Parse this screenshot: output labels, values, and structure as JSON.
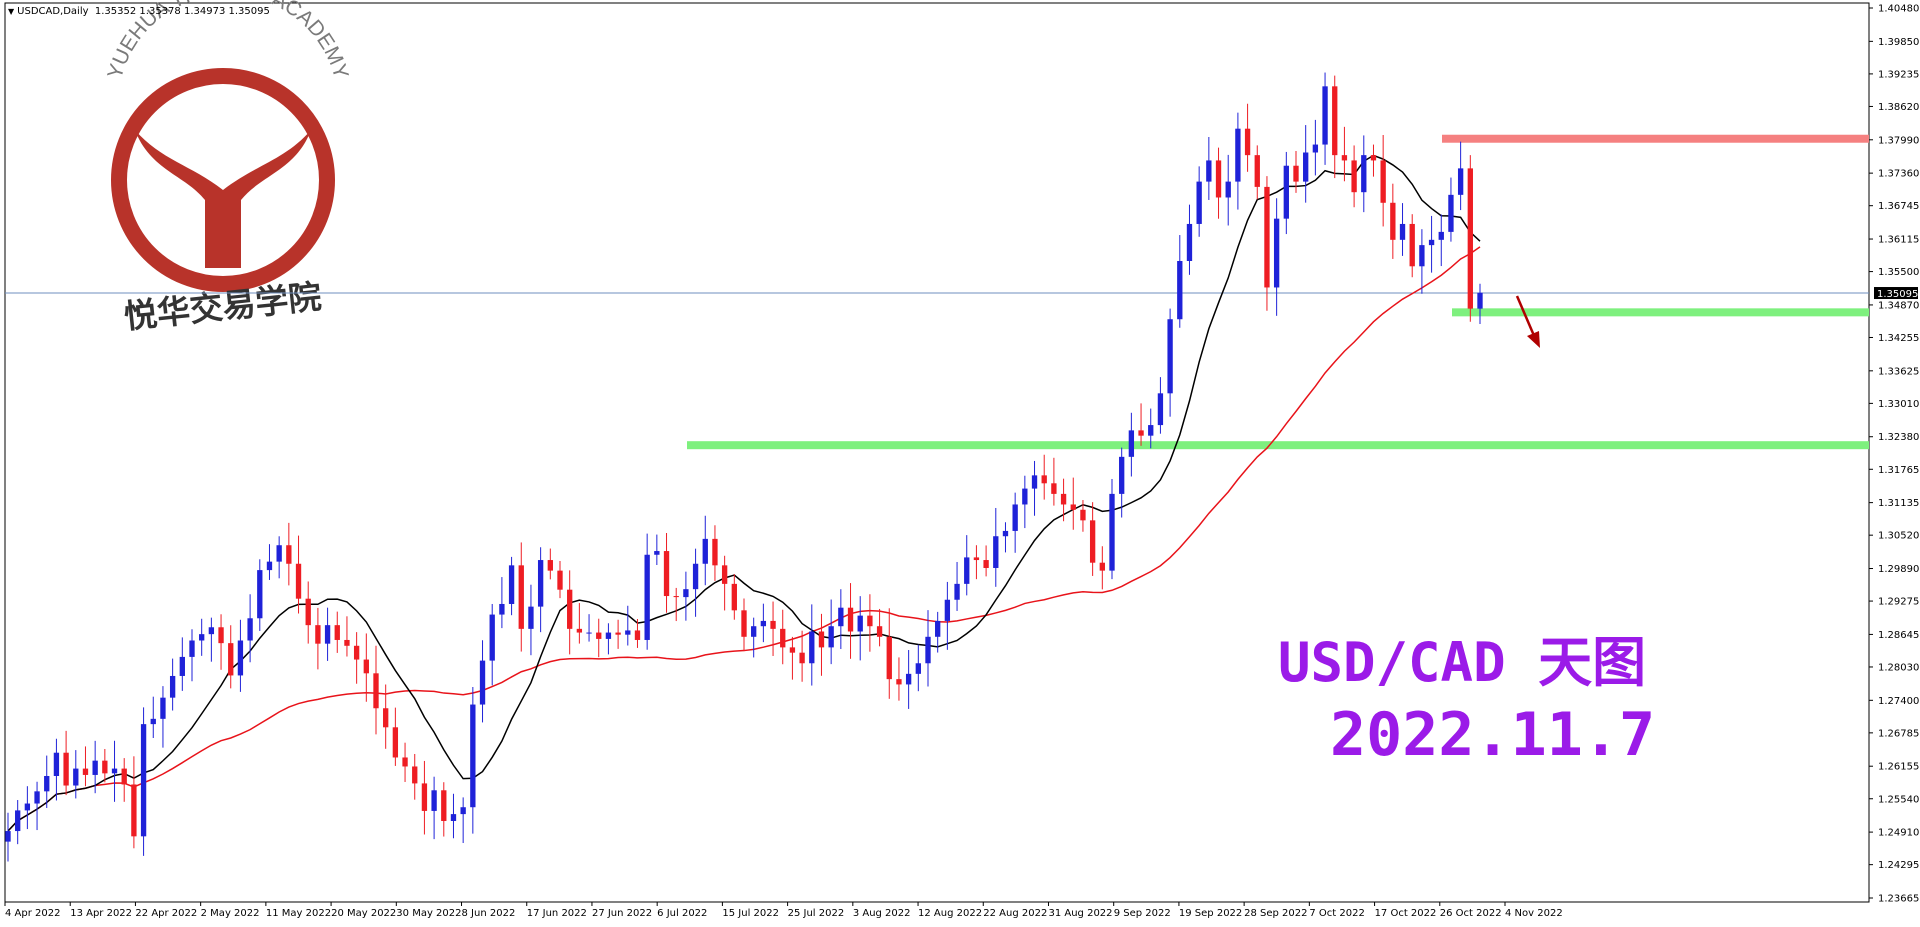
{
  "header": {
    "symbol": "USDCAD,Daily",
    "ohlc": "1.35352 1.35378 1.34973 1.35095"
  },
  "logo": {
    "arc_text": "YUEHUA TRADING ACADEMY",
    "cn_text": "悦华交易学院"
  },
  "overlay": {
    "title": "USD/CAD 天图",
    "date": "2022.11.7"
  },
  "colors": {
    "bull": "#1f22d8",
    "bear": "#ee1d23",
    "ma_fast": "#000000",
    "ma_slow": "#e8131a",
    "support": "#7ef07e",
    "resistance": "#f58080",
    "arrow": "#b00000",
    "price_line": "#6f8fbf",
    "logo": "#b8332a"
  },
  "chart_data": {
    "type": "candlestick",
    "symbol": "USDCAD",
    "timeframe": "Daily",
    "current_price": "1.35095",
    "ylim": [
      1.23665,
      1.4048
    ],
    "y_ticks": [
      "1.40480",
      "1.39850",
      "1.39235",
      "1.38620",
      "1.37990",
      "1.37360",
      "1.36745",
      "1.36115",
      "1.35500",
      "1.34870",
      "1.34255",
      "1.33625",
      "1.33010",
      "1.32380",
      "1.31765",
      "1.31135",
      "1.30520",
      "1.29890",
      "1.29275",
      "1.28645",
      "1.28030",
      "1.27400",
      "1.26785",
      "1.26155",
      "1.25540",
      "1.24910",
      "1.24295",
      "1.23665"
    ],
    "x_ticks": [
      "4 Apr 2022",
      "13 Apr 2022",
      "22 Apr 2022",
      "2 May 2022",
      "11 May 2022",
      "20 May 2022",
      "30 May 2022",
      "8 Jun 2022",
      "17 Jun 2022",
      "27 Jun 2022",
      "6 Jul 2022",
      "15 Jul 2022",
      "25 Jul 2022",
      "3 Aug 2022",
      "12 Aug 2022",
      "22 Aug 2022",
      "31 Aug 2022",
      "9 Sep 2022",
      "19 Sep 2022",
      "28 Sep 2022",
      "7 Oct 2022",
      "17 Oct 2022",
      "26 Oct 2022",
      "4 Nov 2022"
    ],
    "levels": [
      {
        "kind": "resistance",
        "price": 1.3801
      },
      {
        "kind": "support",
        "price": 1.3473
      },
      {
        "kind": "support",
        "price": 1.3222
      }
    ],
    "closes": [
      1.2493,
      1.2532,
      1.2545,
      1.2568,
      1.2597,
      1.2641,
      1.2579,
      1.2611,
      1.2599,
      1.2626,
      1.2602,
      1.2611,
      1.2581,
      1.2483,
      1.2695,
      1.2705,
      1.2745,
      1.2786,
      1.2822,
      1.2853,
      1.2865,
      1.2878,
      1.2848,
      1.2787,
      1.2853,
      1.2895,
      1.2986,
      1.3002,
      1.3033,
      1.2998,
      1.2932,
      1.2882,
      1.2847,
      1.2882,
      1.2854,
      1.2843,
      1.2817,
      1.2791,
      1.2725,
      1.2689,
      1.2632,
      1.2615,
      1.2583,
      1.2531,
      1.257,
      1.2512,
      1.2525,
      1.2538,
      1.2732,
      1.2815,
      1.2902,
      1.2922,
      1.2995,
      1.2875,
      1.2917,
      1.3005,
      1.2985,
      1.2949,
      1.2875,
      1.2868,
      1.2868,
      1.2856,
      1.2868,
      1.2864,
      1.2872,
      1.2854,
      1.3015,
      1.3022,
      1.2937,
      1.2935,
      1.295,
      1.2998,
      1.3045,
      1.2995,
      1.296,
      1.291,
      1.286,
      1.288,
      1.289,
      1.2875,
      1.284,
      1.283,
      1.281,
      1.287,
      1.284,
      1.288,
      1.2915,
      1.287,
      1.29,
      1.288,
      1.286,
      1.278,
      1.277,
      1.279,
      1.281,
      1.286,
      1.289,
      1.293,
      1.296,
      1.301,
      1.3005,
      1.299,
      1.305,
      1.306,
      1.311,
      1.314,
      1.3165,
      1.315,
      1.313,
      1.311,
      1.31,
      1.308,
      1.3,
      1.2985,
      1.313,
      1.32,
      1.325,
      1.324,
      1.326,
      1.332,
      1.346,
      1.357,
      1.364,
      1.372,
      1.376,
      1.369,
      1.372,
      1.382,
      1.377,
      1.371,
      1.352,
      1.365,
      1.375,
      1.372,
      1.3775,
      1.379,
      1.39,
      1.377,
      1.376,
      1.37,
      1.377,
      1.376,
      1.368,
      1.361,
      1.364,
      1.356,
      1.36,
      1.361,
      1.3625,
      1.3695,
      1.3745,
      1.348,
      1.351
    ]
  }
}
